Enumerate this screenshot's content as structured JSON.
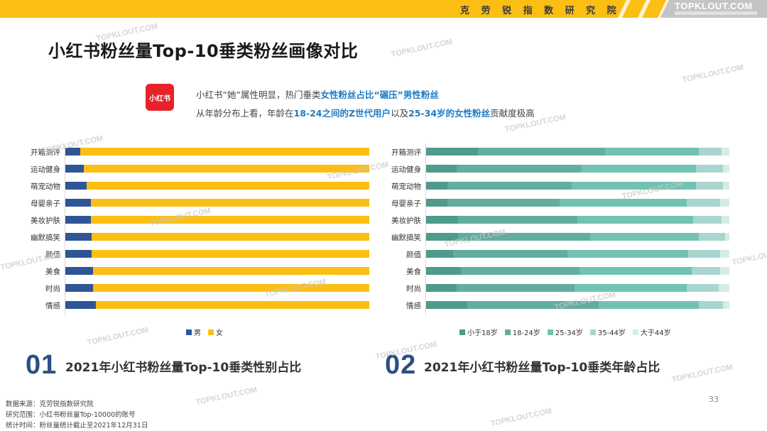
{
  "header": {
    "brand": "克 劳 锐 指 数 研 究 院",
    "domain": "TOPKLOUT.COM"
  },
  "title": "小红书粉丝量Top-10垂类粉丝画像对比",
  "logo": {
    "text": "小红书",
    "color": "#e8222b"
  },
  "insights": {
    "line1": {
      "a": "小红书“她”属性明显，热门垂类",
      "b": "女性粉丝占比“碾压”男性粉丝"
    },
    "line2": {
      "a": "从年龄分布上看，年龄在",
      "b": "18-24之间的Z世代用户",
      "c": "以及",
      "d": "25-34岁的女性粉丝",
      "e": "贡献度极高"
    }
  },
  "chart_data": [
    {
      "type": "bar",
      "orientation": "horizontal",
      "stacked": "percent",
      "title": "2021年小红书粉丝量Top-10垂类性别占比",
      "categories": [
        "开箱测评",
        "运动健身",
        "萌宠动物",
        "母婴亲子",
        "美妆护肤",
        "幽默搞笑",
        "颜值",
        "美食",
        "时尚",
        "情感"
      ],
      "series": [
        {
          "name": "男",
          "color": "#2f5597",
          "values": [
            5,
            6,
            7,
            8.5,
            8.5,
            8.7,
            8.7,
            9,
            9,
            10
          ]
        },
        {
          "name": "女",
          "color": "#fbbf14",
          "values": [
            95,
            94,
            93,
            91.5,
            91.5,
            91.3,
            91.3,
            91,
            91,
            90
          ]
        }
      ],
      "xlim": [
        0,
        100
      ],
      "grid": false,
      "legend_position": "bottom"
    },
    {
      "type": "bar",
      "orientation": "horizontal",
      "stacked": "percent",
      "title": "2021年小红书粉丝量Top-10垂类年龄占比",
      "categories": [
        "开箱测评",
        "运动健身",
        "萌宠动物",
        "母婴亲子",
        "美妆护肤",
        "幽默搞笑",
        "颜值",
        "美食",
        "时尚",
        "情感"
      ],
      "series": [
        {
          "name": "小于18岁",
          "color": "#4e9a8c",
          "values": [
            17,
            10,
            7,
            7,
            10.5,
            10.5,
            9,
            11.5,
            10,
            13.5
          ]
        },
        {
          "name": "18-24岁",
          "color": "#62ad9f",
          "values": [
            42,
            41,
            41,
            37,
            39.5,
            43.5,
            37.5,
            39,
            39,
            43.5
          ]
        },
        {
          "name": "25-34岁",
          "color": "#72c2b2",
          "values": [
            31,
            38,
            41,
            42,
            38,
            36,
            40,
            37,
            37,
            33
          ]
        },
        {
          "name": "35-44岁",
          "color": "#a8d6ce",
          "values": [
            7.5,
            9,
            9,
            11,
            9.5,
            8.5,
            10.5,
            9.5,
            10.5,
            8
          ]
        },
        {
          "name": "大于44岁",
          "color": "#d6ece8",
          "values": [
            2.5,
            2,
            2,
            3,
            2.5,
            1.5,
            3,
            3,
            3.5,
            2
          ]
        }
      ],
      "xlim": [
        0,
        100
      ],
      "grid": false,
      "legend_position": "bottom"
    }
  ],
  "sections": [
    {
      "num": "01",
      "title": "2021年小红书粉丝量Top-10垂类性别占比"
    },
    {
      "num": "02",
      "title": "2021年小红书粉丝量Top-10垂类年龄占比"
    }
  ],
  "footer": {
    "source": "数据来源：克劳锐指数研究院",
    "scope": "研究范围：小红书粉丝量Top-10000的账号",
    "period": "统计时间：粉丝量统计截止至2021年12月31日"
  },
  "page_number": "33",
  "watermark": "TOPKLOUT.COM"
}
